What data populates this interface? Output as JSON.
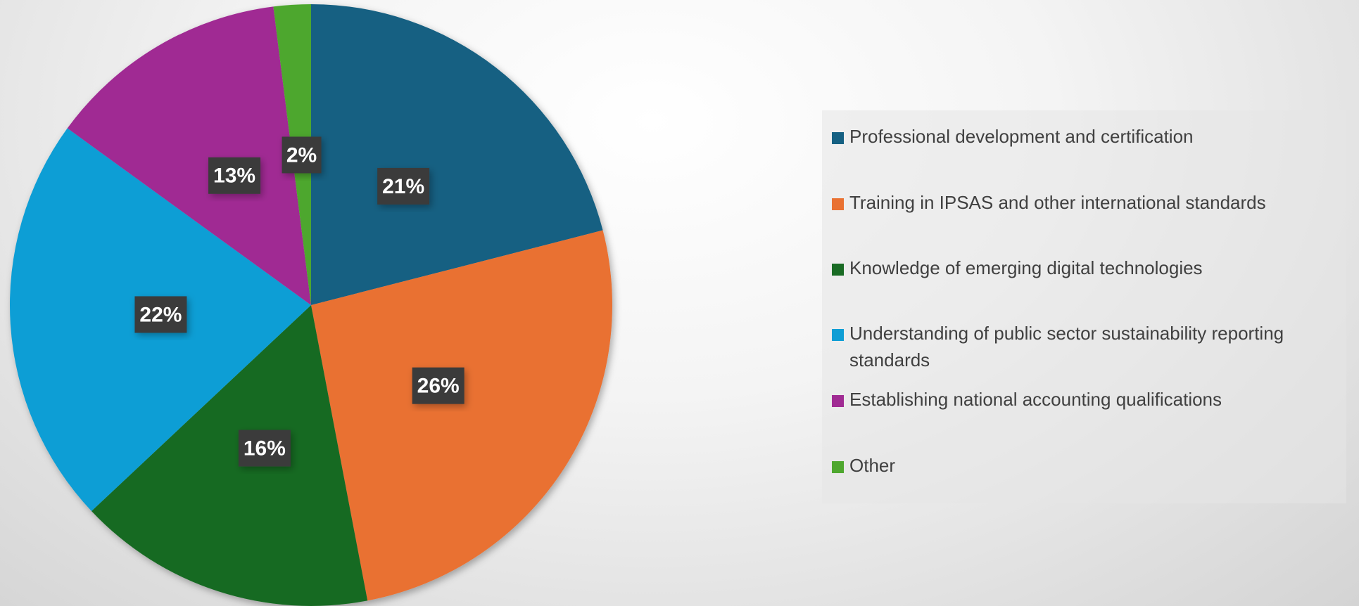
{
  "chart_data": {
    "type": "pie",
    "categories": [
      "Professional development and certification",
      "Training in IPSAS and other international standards",
      "Knowledge of emerging digital technologies",
      "Understanding of public sector sustainability reporting standards",
      "Establishing national accounting qualifications",
      "Other"
    ],
    "values": [
      21,
      26,
      16,
      22,
      13,
      2
    ],
    "value_labels": [
      "21%",
      "26%",
      "16%",
      "22%",
      "13%",
      "2%"
    ],
    "colors": [
      "#156082",
      "#e97132",
      "#196b24",
      "#0f9ed5",
      "#a02b93",
      "#4ea72e"
    ],
    "legend": "right"
  }
}
